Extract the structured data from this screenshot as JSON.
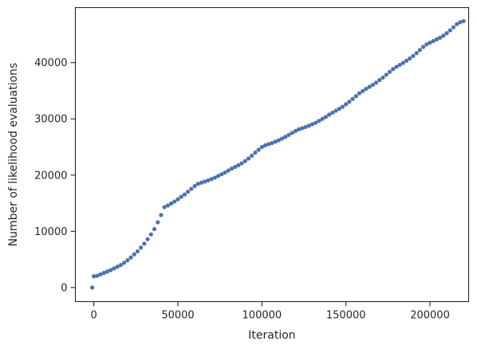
{
  "chart_data": {
    "type": "scatter",
    "xlabel": "Iteration",
    "ylabel": "Number of likelihood evaluations",
    "xlim": [
      -11000,
      223000
    ],
    "ylim": [
      -2500,
      49800
    ],
    "xticks": [
      0,
      50000,
      100000,
      150000,
      200000
    ],
    "yticks": [
      0,
      10000,
      20000,
      30000,
      40000
    ],
    "grid": false,
    "marker_color": "#4c72b0",
    "series": [
      {
        "points": [
          [
            -1000,
            0
          ],
          [
            0,
            2000
          ],
          [
            2000,
            2100
          ],
          [
            4000,
            2350
          ],
          [
            6000,
            2600
          ],
          [
            8000,
            2850
          ],
          [
            10000,
            3100
          ],
          [
            12000,
            3400
          ],
          [
            14000,
            3700
          ],
          [
            16000,
            4000
          ],
          [
            18000,
            4400
          ],
          [
            20000,
            4850
          ],
          [
            22000,
            5350
          ],
          [
            24000,
            5900
          ],
          [
            26000,
            6450
          ],
          [
            28000,
            7100
          ],
          [
            30000,
            7800
          ],
          [
            32000,
            8600
          ],
          [
            34000,
            9450
          ],
          [
            36000,
            10400
          ],
          [
            38000,
            11600
          ],
          [
            40000,
            12900
          ],
          [
            42000,
            14300
          ],
          [
            44000,
            14600
          ],
          [
            46000,
            14950
          ],
          [
            48000,
            15300
          ],
          [
            50000,
            15700
          ],
          [
            52000,
            16150
          ],
          [
            54000,
            16550
          ],
          [
            56000,
            17050
          ],
          [
            58000,
            17550
          ],
          [
            60000,
            18050
          ],
          [
            62000,
            18450
          ],
          [
            64000,
            18650
          ],
          [
            66000,
            18850
          ],
          [
            68000,
            19050
          ],
          [
            70000,
            19300
          ],
          [
            72000,
            19550
          ],
          [
            74000,
            19850
          ],
          [
            76000,
            20150
          ],
          [
            78000,
            20450
          ],
          [
            80000,
            20800
          ],
          [
            82000,
            21150
          ],
          [
            84000,
            21450
          ],
          [
            86000,
            21750
          ],
          [
            88000,
            22100
          ],
          [
            90000,
            22500
          ],
          [
            92000,
            22950
          ],
          [
            94000,
            23450
          ],
          [
            96000,
            24000
          ],
          [
            98000,
            24500
          ],
          [
            100000,
            25000
          ],
          [
            102000,
            25300
          ],
          [
            104000,
            25500
          ],
          [
            106000,
            25700
          ],
          [
            108000,
            25950
          ],
          [
            110000,
            26200
          ],
          [
            112000,
            26500
          ],
          [
            114000,
            26800
          ],
          [
            116000,
            27150
          ],
          [
            118000,
            27500
          ],
          [
            120000,
            27850
          ],
          [
            122000,
            28150
          ],
          [
            124000,
            28350
          ],
          [
            126000,
            28550
          ],
          [
            128000,
            28800
          ],
          [
            130000,
            29050
          ],
          [
            132000,
            29300
          ],
          [
            134000,
            29650
          ],
          [
            136000,
            30000
          ],
          [
            138000,
            30350
          ],
          [
            140000,
            30750
          ],
          [
            142000,
            31100
          ],
          [
            144000,
            31450
          ],
          [
            146000,
            31800
          ],
          [
            148000,
            32150
          ],
          [
            150000,
            32600
          ],
          [
            152000,
            33050
          ],
          [
            154000,
            33550
          ],
          [
            156000,
            34050
          ],
          [
            158000,
            34550
          ],
          [
            160000,
            34950
          ],
          [
            162000,
            35350
          ],
          [
            164000,
            35700
          ],
          [
            166000,
            36050
          ],
          [
            168000,
            36450
          ],
          [
            170000,
            36900
          ],
          [
            172000,
            37350
          ],
          [
            174000,
            37850
          ],
          [
            176000,
            38350
          ],
          [
            178000,
            38850
          ],
          [
            180000,
            39250
          ],
          [
            182000,
            39600
          ],
          [
            184000,
            39950
          ],
          [
            186000,
            40350
          ],
          [
            188000,
            40750
          ],
          [
            190000,
            41200
          ],
          [
            192000,
            41700
          ],
          [
            194000,
            42250
          ],
          [
            196000,
            42800
          ],
          [
            198000,
            43250
          ],
          [
            200000,
            43550
          ],
          [
            202000,
            43850
          ],
          [
            204000,
            44150
          ],
          [
            206000,
            44450
          ],
          [
            208000,
            44800
          ],
          [
            210000,
            45250
          ],
          [
            212000,
            45750
          ],
          [
            214000,
            46300
          ],
          [
            216000,
            46850
          ],
          [
            218000,
            47200
          ],
          [
            220000,
            47400
          ]
        ]
      }
    ]
  }
}
